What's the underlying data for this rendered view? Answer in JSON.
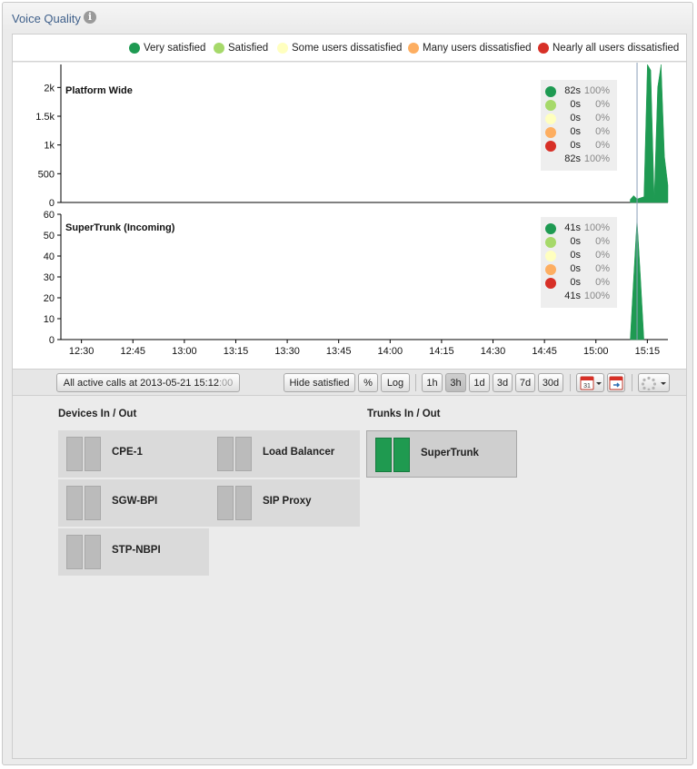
{
  "panel": {
    "title": "Voice Quality",
    "info_icon": "info-icon"
  },
  "legend": [
    {
      "label": "Very satisfied",
      "color": "#1e9a52"
    },
    {
      "label": "Satisfied",
      "color": "#a6d96a"
    },
    {
      "label": "Some users dissatisfied",
      "color": "#ffffbf"
    },
    {
      "label": "Many users dissatisfied",
      "color": "#fdae61"
    },
    {
      "label": "Nearly all users dissatisfied",
      "color": "#d73027"
    }
  ],
  "chart_data": [
    {
      "type": "area",
      "title": "Platform Wide",
      "ylim": [
        0,
        2400
      ],
      "yticks": [
        "0",
        "500",
        "1k",
        "1.5k",
        "2k"
      ],
      "ytick_values": [
        0,
        500,
        1000,
        1500,
        2000
      ],
      "series": [
        {
          "name": "Very satisfied",
          "color": "#1e9a52",
          "x": [
            "15:10",
            "15:11",
            "15:12",
            "15:13",
            "15:14",
            "15:15",
            "15:16",
            "15:17",
            "15:18",
            "15:19",
            "15:20",
            "15:21"
          ],
          "values": [
            50,
            120,
            60,
            80,
            100,
            2400,
            2300,
            60,
            2000,
            2400,
            800,
            300
          ]
        }
      ],
      "stats": [
        {
          "value": "82s",
          "pct": "100%"
        },
        {
          "value": "0s",
          "pct": "0%"
        },
        {
          "value": "0s",
          "pct": "0%"
        },
        {
          "value": "0s",
          "pct": "0%"
        },
        {
          "value": "0s",
          "pct": "0%"
        }
      ],
      "total": {
        "value": "82s",
        "pct": "100%"
      }
    },
    {
      "type": "area",
      "title": "SuperTrunk (Incoming)",
      "ylim": [
        0,
        60
      ],
      "yticks": [
        "0",
        "10",
        "20",
        "30",
        "40",
        "50",
        "60"
      ],
      "ytick_values": [
        0,
        10,
        20,
        30,
        40,
        50,
        60
      ],
      "series": [
        {
          "name": "Very satisfied",
          "color": "#1e9a52",
          "x": [
            "15:10",
            "15:11",
            "15:12",
            "15:13",
            "15:14"
          ],
          "values": [
            0,
            30,
            58,
            30,
            0
          ]
        }
      ],
      "stats": [
        {
          "value": "41s",
          "pct": "100%"
        },
        {
          "value": "0s",
          "pct": "0%"
        },
        {
          "value": "0s",
          "pct": "0%"
        },
        {
          "value": "0s",
          "pct": "0%"
        },
        {
          "value": "0s",
          "pct": "0%"
        }
      ],
      "total": {
        "value": "41s",
        "pct": "100%"
      }
    }
  ],
  "x_axis": {
    "ticks": [
      "12:30",
      "12:45",
      "13:00",
      "13:15",
      "13:30",
      "13:45",
      "14:00",
      "14:15",
      "14:30",
      "14:45",
      "15:00",
      "15:15"
    ],
    "range": [
      "12:24",
      "15:21"
    ],
    "cursor": "15:12"
  },
  "toolbar": {
    "calls_label": "All active calls at 2013-05-21 15:12",
    "calls_seconds": ":00",
    "hide_satisfied": "Hide satisfied",
    "percent": "%",
    "log": "Log",
    "ranges": [
      "1h",
      "3h",
      "1d",
      "3d",
      "7d",
      "30d"
    ],
    "active_range": "3h",
    "calendar_day": "31"
  },
  "devices": {
    "title": "Devices In / Out",
    "items": [
      "CPE-1",
      "Load Balancer",
      "SGW-BPI",
      "SIP Proxy",
      "STP-NBPI"
    ]
  },
  "trunks": {
    "title": "Trunks In / Out",
    "items": [
      "SuperTrunk"
    ]
  }
}
